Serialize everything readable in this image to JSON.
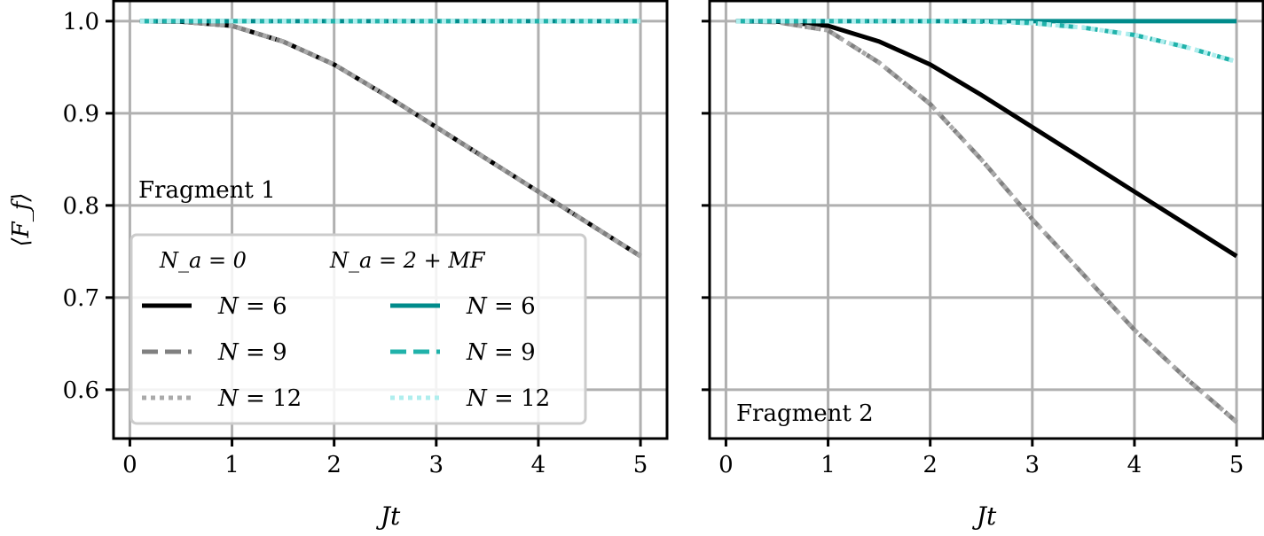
{
  "chart_data": [
    {
      "type": "line",
      "annotation": "Fragment 1",
      "xlabel": "Jt",
      "ylabel": "⟨F_f⟩",
      "xlim": [
        -0.16,
        5.26
      ],
      "ylim": [
        0.547,
        1.022
      ],
      "xticks": [
        0,
        1,
        2,
        3,
        4,
        5
      ],
      "yticks": [
        0.6,
        0.7,
        0.8,
        0.9,
        1.0
      ],
      "ytick_labels": [
        "0.6",
        "0.7",
        "0.8",
        "0.9",
        "1.0"
      ],
      "grid": true,
      "legend_placement": "lower-left",
      "x": [
        0.1,
        0.5,
        1,
        1.5,
        2,
        2.5,
        3,
        3.5,
        4,
        4.5,
        5
      ],
      "series": [
        {
          "group": "N_a = 0",
          "name": "N = 6",
          "style": "solid",
          "color": "#000000",
          "values": [
            1.0,
            0.9995,
            0.995,
            0.978,
            0.953,
            0.92,
            0.885,
            0.85,
            0.815,
            0.78,
            0.745
          ]
        },
        {
          "group": "N_a = 0",
          "name": "N = 9",
          "style": "dashed",
          "color": "#808080",
          "values": [
            1.0,
            0.9995,
            0.995,
            0.978,
            0.953,
            0.92,
            0.885,
            0.85,
            0.815,
            0.78,
            0.745
          ]
        },
        {
          "group": "N_a = 0",
          "name": "N = 12",
          "style": "dotted",
          "color": "#aaaaaa",
          "values": [
            1.0,
            0.9995,
            0.995,
            0.978,
            0.953,
            0.92,
            0.885,
            0.85,
            0.815,
            0.78,
            0.745
          ]
        },
        {
          "group": "N_a = 2 + MF",
          "name": "N = 6",
          "style": "solid",
          "color": "#008b8b",
          "values": [
            1,
            1,
            1,
            1,
            1,
            1,
            1,
            1,
            1,
            1,
            1
          ]
        },
        {
          "group": "N_a = 2 + MF",
          "name": "N = 9",
          "style": "dashed",
          "color": "#20b2aa",
          "values": [
            1,
            1,
            1,
            1,
            1,
            1,
            1,
            1,
            1,
            1,
            1
          ]
        },
        {
          "group": "N_a = 2 + MF",
          "name": "N = 12",
          "style": "dotted",
          "color": "#afeeee",
          "values": [
            1,
            1,
            1,
            1,
            1,
            1,
            1,
            1,
            1,
            1,
            1
          ]
        }
      ]
    },
    {
      "type": "line",
      "annotation": "Fragment 2",
      "xlabel": "Jt",
      "xlim": [
        -0.16,
        5.26
      ],
      "ylim": [
        0.547,
        1.022
      ],
      "xticks": [
        0,
        1,
        2,
        3,
        4,
        5
      ],
      "grid": true,
      "x": [
        0.1,
        0.5,
        1,
        1.5,
        2,
        2.5,
        3,
        3.5,
        4,
        4.5,
        5
      ],
      "series": [
        {
          "group": "N_a = 0",
          "name": "N = 6",
          "style": "solid",
          "color": "#000000",
          "values": [
            1.0,
            0.9995,
            0.995,
            0.978,
            0.953,
            0.92,
            0.885,
            0.85,
            0.815,
            0.78,
            0.745
          ]
        },
        {
          "group": "N_a = 0",
          "name": "N = 9",
          "style": "dashed",
          "color": "#808080",
          "values": [
            1.0,
            0.999,
            0.99,
            0.955,
            0.91,
            0.85,
            0.785,
            0.725,
            0.665,
            0.613,
            0.565
          ]
        },
        {
          "group": "N_a = 0",
          "name": "N = 12",
          "style": "dotted",
          "color": "#aaaaaa",
          "values": [
            1.0,
            0.999,
            0.99,
            0.955,
            0.91,
            0.85,
            0.785,
            0.725,
            0.665,
            0.613,
            0.565
          ]
        },
        {
          "group": "N_a = 2 + MF",
          "name": "N = 6",
          "style": "solid",
          "color": "#008b8b",
          "values": [
            1,
            1,
            1,
            1,
            1,
            1,
            1,
            1,
            1,
            1,
            1
          ]
        },
        {
          "group": "N_a = 2 + MF",
          "name": "N = 9",
          "style": "dashed",
          "color": "#20b2aa",
          "values": [
            1,
            1,
            1,
            1,
            1,
            0.9995,
            0.998,
            0.993,
            0.985,
            0.972,
            0.956
          ]
        },
        {
          "group": "N_a = 2 + MF",
          "name": "N = 12",
          "style": "dotted",
          "color": "#afeeee",
          "values": [
            1,
            1,
            1,
            1,
            1,
            0.9995,
            0.998,
            0.993,
            0.985,
            0.972,
            0.956
          ]
        }
      ]
    }
  ],
  "legend": {
    "headers": [
      "N_a = 0",
      "N_a = 2 + MF"
    ]
  }
}
